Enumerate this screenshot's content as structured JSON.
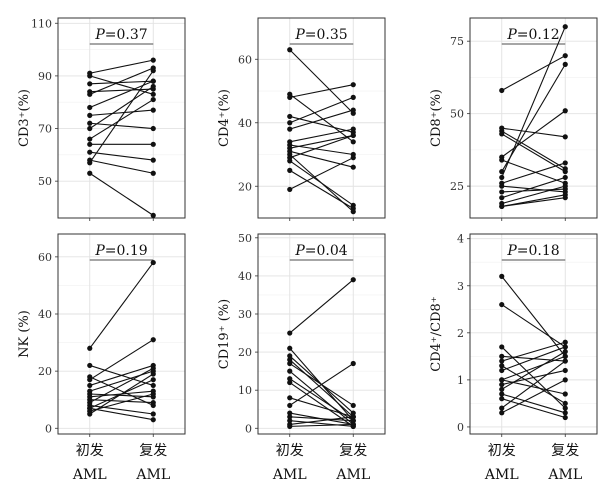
{
  "figure": {
    "x_categories": [
      "初发",
      "复发"
    ],
    "x_categories_line2": [
      "AML",
      "AML"
    ]
  },
  "chart_data": [
    {
      "type": "line",
      "ylabel": "CD3⁺(%)",
      "p_label": "P",
      "p_value": "=0.37",
      "ylim": [
        36,
        112
      ],
      "yticks": [
        50,
        70,
        90,
        110
      ],
      "categories": [
        "初发",
        "复发"
      ],
      "pairs": [
        [
          91,
          96
        ],
        [
          90,
          83
        ],
        [
          87,
          88
        ],
        [
          84,
          85
        ],
        [
          83,
          93
        ],
        [
          78,
          88
        ],
        [
          75,
          77
        ],
        [
          72,
          70
        ],
        [
          70,
          86
        ],
        [
          66,
          81
        ],
        [
          64,
          64
        ],
        [
          61,
          58
        ],
        [
          58,
          53
        ],
        [
          57,
          92
        ],
        [
          53,
          37
        ]
      ],
      "grid": true
    },
    {
      "type": "line",
      "ylabel": "CD4⁺(%)",
      "p_label": "P",
      "p_value": "=0.35",
      "ylim": [
        10,
        73
      ],
      "yticks": [
        20,
        40,
        60
      ],
      "categories": [
        "初发",
        "复发"
      ],
      "pairs": [
        [
          63,
          43
        ],
        [
          49,
          34
        ],
        [
          48,
          52
        ],
        [
          42,
          37
        ],
        [
          40,
          48
        ],
        [
          38,
          44
        ],
        [
          34,
          38
        ],
        [
          33,
          30
        ],
        [
          32,
          36
        ],
        [
          31,
          26
        ],
        [
          30,
          12
        ],
        [
          29,
          36
        ],
        [
          28,
          14
        ],
        [
          25,
          13
        ],
        [
          19,
          29
        ]
      ],
      "grid": true
    },
    {
      "type": "line",
      "ylabel": "CD8⁺(%)",
      "p_label": "P",
      "p_value": "=0.12",
      "ylim": [
        14,
        83
      ],
      "yticks": [
        25,
        50,
        75
      ],
      "categories": [
        "初发",
        "复发"
      ],
      "pairs": [
        [
          58,
          70
        ],
        [
          45,
          42
        ],
        [
          44,
          31
        ],
        [
          43,
          30
        ],
        [
          35,
          51
        ],
        [
          34,
          26
        ],
        [
          30,
          67
        ],
        [
          28,
          80
        ],
        [
          26,
          33
        ],
        [
          25,
          23
        ],
        [
          23,
          24
        ],
        [
          21,
          28
        ],
        [
          19,
          25
        ],
        [
          18,
          21
        ],
        [
          18,
          22
        ]
      ],
      "grid": true
    },
    {
      "type": "line",
      "ylabel": "NK (%)",
      "p_label": "P",
      "p_value": "=0.19",
      "ylim": [
        -2,
        68
      ],
      "yticks": [
        0,
        20,
        40,
        60
      ],
      "categories": [
        "初发",
        "复发"
      ],
      "pairs": [
        [
          28,
          58
        ],
        [
          22,
          15
        ],
        [
          18,
          8
        ],
        [
          17,
          31
        ],
        [
          15,
          22
        ],
        [
          13,
          20
        ],
        [
          12,
          11
        ],
        [
          11,
          13
        ],
        [
          10,
          9
        ],
        [
          9,
          21
        ],
        [
          8,
          5
        ],
        [
          7,
          17
        ],
        [
          7,
          3
        ],
        [
          6,
          12
        ],
        [
          5,
          19
        ]
      ],
      "grid": true
    },
    {
      "type": "line",
      "ylabel": "CD19⁺ (%)",
      "p_label": "P",
      "p_value": "=0.04",
      "ylim": [
        -1.5,
        51
      ],
      "yticks": [
        0,
        10,
        20,
        30,
        40,
        50
      ],
      "categories": [
        "初发",
        "复发"
      ],
      "pairs": [
        [
          25,
          39
        ],
        [
          21,
          2
        ],
        [
          19,
          4
        ],
        [
          18,
          3
        ],
        [
          17,
          6
        ],
        [
          15,
          1
        ],
        [
          13,
          2
        ],
        [
          12,
          0.5
        ],
        [
          8,
          3
        ],
        [
          6,
          17
        ],
        [
          4,
          1
        ],
        [
          3,
          2
        ],
        [
          2,
          0.5
        ],
        [
          1,
          3
        ],
        [
          0.5,
          1
        ]
      ],
      "grid": true
    },
    {
      "type": "line",
      "ylabel": "CD4⁺/CD8⁺",
      "p_label": "P",
      "p_value": "=0.18",
      "ylim": [
        -0.15,
        4.1
      ],
      "yticks": [
        0,
        1,
        2,
        3,
        4
      ],
      "categories": [
        "初发",
        "复发"
      ],
      "pairs": [
        [
          3.2,
          1.5
        ],
        [
          2.6,
          1.7
        ],
        [
          1.7,
          0.4
        ],
        [
          1.5,
          1.4
        ],
        [
          1.4,
          1.8
        ],
        [
          1.3,
          0.5
        ],
        [
          1.2,
          1.7
        ],
        [
          1.0,
          1.5
        ],
        [
          1.0,
          0.7
        ],
        [
          0.9,
          1.2
        ],
        [
          0.8,
          1.6
        ],
        [
          0.7,
          0.3
        ],
        [
          0.6,
          0.2
        ],
        [
          0.4,
          1.4
        ],
        [
          0.3,
          1.0
        ]
      ],
      "grid": true
    }
  ]
}
